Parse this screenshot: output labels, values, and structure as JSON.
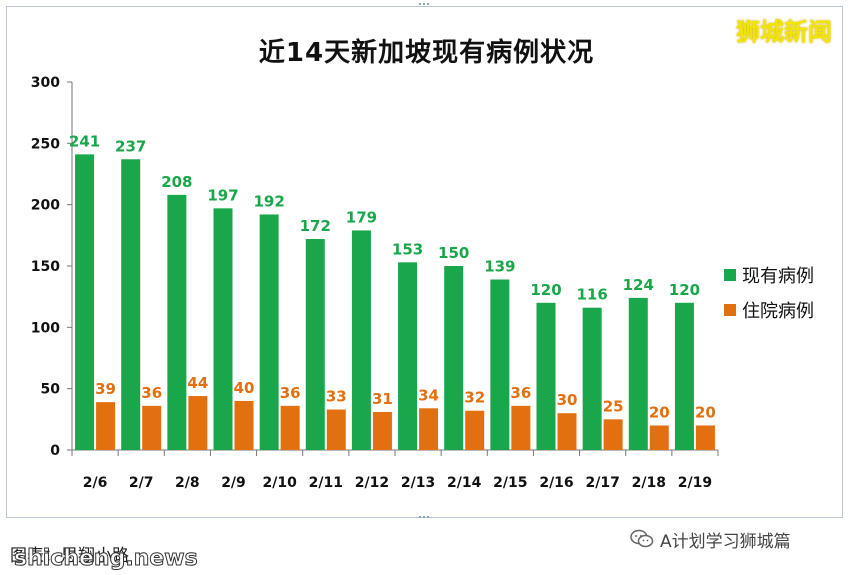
{
  "title": "近14天新加坡现有病例状况",
  "brand": "狮城新闻",
  "legend": {
    "current": "现有病例",
    "hospital": "住院病例"
  },
  "footer": {
    "source": "图表：思翔小路",
    "watermark": "shicheng.news",
    "wechat_name": "A计划学习狮城篇"
  },
  "colors": {
    "current": "#1aa64a",
    "hospital": "#e3700f",
    "brand": "#f1e600"
  },
  "chart_data": {
    "type": "bar",
    "title": "近14天新加坡现有病例状况",
    "categories": [
      "2/6",
      "2/7",
      "2/8",
      "2/9",
      "2/10",
      "2/11",
      "2/12",
      "2/13",
      "2/14",
      "2/15",
      "2/16",
      "2/17",
      "2/18",
      "2/19"
    ],
    "series": [
      {
        "name": "现有病例",
        "values": [
          241,
          237,
          208,
          197,
          192,
          172,
          179,
          153,
          150,
          139,
          120,
          116,
          124,
          120
        ]
      },
      {
        "name": "住院病例",
        "values": [
          39,
          36,
          44,
          40,
          36,
          33,
          31,
          34,
          32,
          36,
          30,
          25,
          20,
          20
        ]
      }
    ],
    "yticks": [
      "0",
      "50",
      "100",
      "150",
      "200",
      "250",
      "300"
    ],
    "ylim": [
      0,
      300
    ],
    "grid": false,
    "legend_position": "right"
  }
}
